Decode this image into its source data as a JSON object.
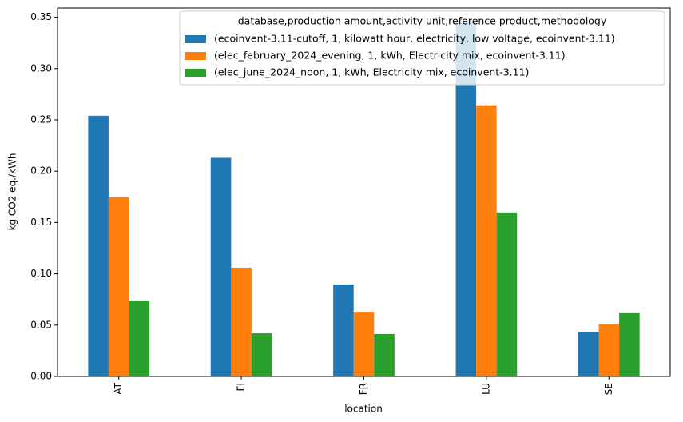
{
  "chart_data": {
    "type": "bar",
    "x_label": "location",
    "y_label": "kg CO2 eq./kWh",
    "categories": [
      "AT",
      "FI",
      "FR",
      "LU",
      "SE"
    ],
    "legend_title": "database,production amount,activity unit,reference product,methodology",
    "legend_loc": "upper right",
    "series": [
      {
        "name": "(ecoinvent-3.11-cutoff, 1, kilowatt hour, electricity, low voltage, ecoinvent-3.11)",
        "color": "#1f77b4",
        "values": [
          0.254,
          0.213,
          0.0896,
          0.345,
          0.0436
        ]
      },
      {
        "name": "(elec_february_2024_evening, 1, kWh, Electricity mix, ecoinvent-3.11)",
        "color": "#ff7f0e",
        "values": [
          0.1746,
          0.106,
          0.063,
          0.2642,
          0.0507
        ]
      },
      {
        "name": "(elec_june_2024_noon, 1, kWh, Electricity mix, ecoinvent-3.11)",
        "color": "#2ca02c",
        "values": [
          0.074,
          0.042,
          0.0413,
          0.1598,
          0.0624
        ]
      }
    ],
    "ylim": [
      0,
      0.359
    ],
    "yticks": [
      {
        "value": 0,
        "label": "0.00"
      },
      {
        "value": 0.05,
        "label": "0.05"
      },
      {
        "value": 0.1,
        "label": "0.10"
      },
      {
        "value": 0.15,
        "label": "0.15"
      },
      {
        "value": 0.2,
        "label": "0.20"
      },
      {
        "value": 0.25,
        "label": "0.25"
      },
      {
        "value": 0.3,
        "label": "0.30"
      },
      {
        "value": 0.35,
        "label": "0.35"
      }
    ],
    "grid": false
  }
}
